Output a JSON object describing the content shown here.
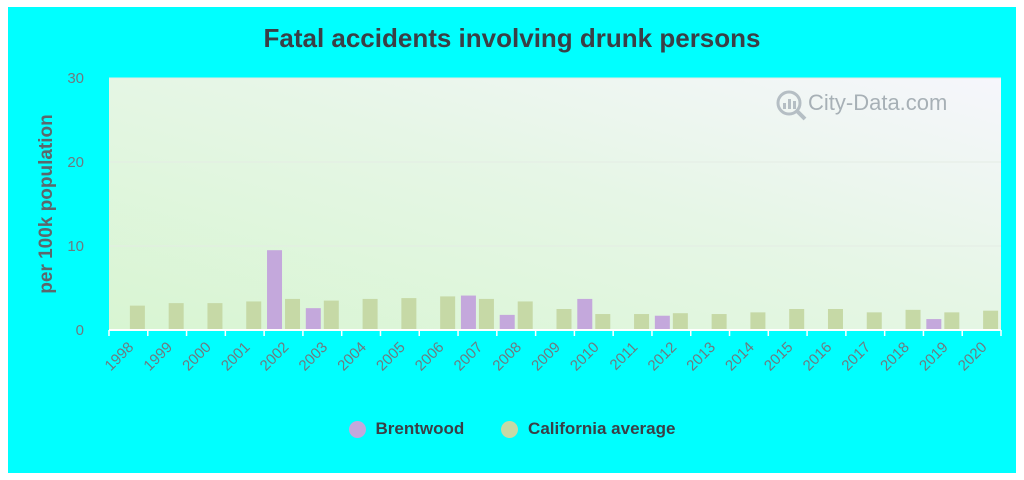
{
  "chart_data": {
    "type": "bar",
    "title": "Fatal accidents involving drunk persons",
    "xlabel": "",
    "ylabel": "per 100k population",
    "ylim": [
      0,
      30
    ],
    "yticks": [
      0,
      10,
      20,
      30
    ],
    "categories": [
      "1998",
      "1999",
      "2000",
      "2001",
      "2002",
      "2003",
      "2004",
      "2005",
      "2006",
      "2007",
      "2008",
      "2009",
      "2010",
      "2011",
      "2012",
      "2013",
      "2014",
      "2015",
      "2016",
      "2017",
      "2018",
      "2019",
      "2020"
    ],
    "series": [
      {
        "name": "Brentwood",
        "color": "#c4a8dc",
        "values": [
          null,
          null,
          null,
          null,
          9.5,
          2.6,
          null,
          null,
          null,
          4.1,
          1.8,
          null,
          3.7,
          null,
          1.7,
          null,
          null,
          null,
          null,
          null,
          null,
          1.3,
          null
        ]
      },
      {
        "name": "California average",
        "color": "#c6d9a6",
        "values": [
          2.9,
          3.2,
          3.2,
          3.4,
          3.7,
          3.5,
          3.7,
          3.8,
          4.0,
          3.7,
          3.4,
          2.5,
          1.9,
          1.9,
          2.0,
          1.9,
          2.1,
          2.5,
          2.5,
          2.1,
          2.4,
          2.1,
          2.3
        ]
      }
    ],
    "grid": true,
    "legend_position": "bottom"
  },
  "watermark": "City-Data.com"
}
